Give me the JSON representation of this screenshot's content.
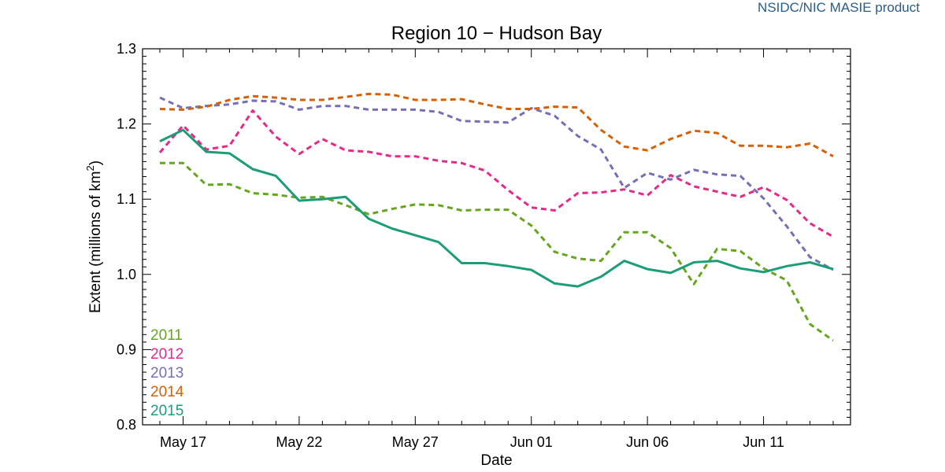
{
  "credit": "NSIDC/NIC MASIE product",
  "chart_data": {
    "type": "line",
    "title": "Region 10 − Hudson Bay",
    "xlabel": "Date",
    "ylabel_main": "Extent (millions of km",
    "ylabel_sup": "2",
    "ylabel_close": ")",
    "ylim": [
      0.8,
      1.3
    ],
    "yticks": [
      0.8,
      0.9,
      1.0,
      1.1,
      1.2,
      1.3
    ],
    "ytick_labels": [
      "0.8",
      "0.9",
      "1.0",
      "1.1",
      "1.2",
      "1.3"
    ],
    "xlim": [
      "May 16",
      "Jun 14"
    ],
    "xticks": [
      "May 17",
      "May 22",
      "May 27",
      "Jun 01",
      "Jun 06",
      "Jun 11"
    ],
    "x": [
      "May 16",
      "May 17",
      "May 18",
      "May 19",
      "May 20",
      "May 21",
      "May 22",
      "May 23",
      "May 24",
      "May 25",
      "May 26",
      "May 27",
      "May 28",
      "May 29",
      "May 30",
      "May 31",
      "Jun 01",
      "Jun 02",
      "Jun 03",
      "Jun 04",
      "Jun 05",
      "Jun 06",
      "Jun 07",
      "Jun 08",
      "Jun 09",
      "Jun 10",
      "Jun 11",
      "Jun 12",
      "Jun 13",
      "Jun 14"
    ],
    "legend_position": "bottom-left",
    "grid": false,
    "series": [
      {
        "name": "2011",
        "color": "#66a61e",
        "dash": true,
        "values": [
          1.148,
          1.148,
          1.119,
          1.12,
          1.108,
          1.106,
          1.102,
          1.103,
          1.092,
          1.08,
          1.087,
          1.093,
          1.092,
          1.085,
          1.086,
          1.086,
          1.065,
          1.03,
          1.021,
          1.018,
          1.056,
          1.056,
          1.035,
          0.987,
          1.034,
          1.031,
          1.008,
          0.992,
          0.934,
          0.912
        ]
      },
      {
        "name": "2012",
        "color": "#e7298a",
        "dash": true,
        "values": [
          1.162,
          1.198,
          1.166,
          1.171,
          1.218,
          1.183,
          1.16,
          1.18,
          1.165,
          1.163,
          1.157,
          1.157,
          1.151,
          1.148,
          1.138,
          1.112,
          1.089,
          1.085,
          1.108,
          1.109,
          1.113,
          1.105,
          1.132,
          1.117,
          1.11,
          1.103,
          1.116,
          1.099,
          1.068,
          1.05
        ]
      },
      {
        "name": "2013",
        "color": "#7570b3",
        "dash": true,
        "values": [
          1.235,
          1.221,
          1.224,
          1.226,
          1.231,
          1.23,
          1.219,
          1.224,
          1.224,
          1.219,
          1.219,
          1.219,
          1.216,
          1.204,
          1.203,
          1.202,
          1.221,
          1.211,
          1.184,
          1.166,
          1.115,
          1.135,
          1.126,
          1.139,
          1.133,
          1.131,
          1.101,
          1.064,
          1.023,
          1.006
        ]
      },
      {
        "name": "2014",
        "color": "#d95f02",
        "dash": true,
        "values": [
          1.22,
          1.219,
          1.223,
          1.232,
          1.237,
          1.235,
          1.232,
          1.232,
          1.236,
          1.24,
          1.239,
          1.232,
          1.232,
          1.233,
          1.226,
          1.22,
          1.22,
          1.223,
          1.222,
          1.192,
          1.17,
          1.165,
          1.18,
          1.191,
          1.188,
          1.171,
          1.171,
          1.169,
          1.174,
          1.157
        ]
      },
      {
        "name": "2015",
        "color": "#1b9e77",
        "dash": false,
        "values": [
          1.177,
          1.192,
          1.163,
          1.161,
          1.14,
          1.131,
          1.098,
          1.1,
          1.103,
          1.074,
          1.061,
          1.052,
          1.043,
          1.015,
          1.015,
          1.011,
          1.006,
          0.988,
          0.984,
          0.997,
          1.018,
          1.007,
          1.002,
          1.016,
          1.018,
          1.008,
          1.003,
          1.011,
          1.016,
          1.007
        ]
      }
    ]
  }
}
